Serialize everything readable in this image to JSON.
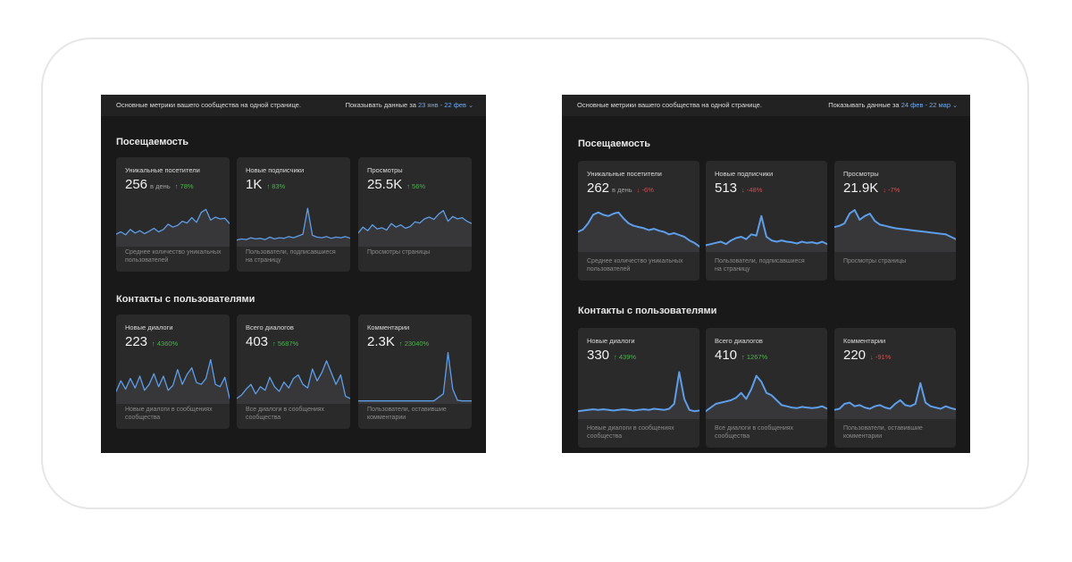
{
  "colors": {
    "panel_bg": "#19191a",
    "card_bg": "#2a2a2b",
    "accent_blue": "#71aaeb",
    "line_blue": "#5e9ee8",
    "up_green": "#4bb34b",
    "down_red": "#e64646"
  },
  "panels": [
    {
      "header_text": "Основные метрики вашего сообщества на одной странице.",
      "show_label": "Показывать данные за",
      "date_range": "23 янв - 22 фев",
      "sections": [
        {
          "title": "Посещаемость",
          "cards": [
            {
              "label": "Уникальные посетители",
              "value": "256",
              "unit": "в день",
              "delta": "78%",
              "direction": "up",
              "desc1": "Среднее количество уникальных",
              "desc2": "пользователей",
              "series": [
                18,
                22,
                17,
                26,
                20,
                24,
                19,
                23,
                28,
                22,
                26,
                35,
                30,
                33,
                40,
                37,
                46,
                38,
                55,
                60,
                42,
                47,
                44,
                45,
                36
              ]
            },
            {
              "label": "Новые подписчики",
              "value": "1K",
              "unit": "",
              "delta": "83%",
              "direction": "up",
              "desc1": "Пользователи, подписавшиеся",
              "desc2": "на страницу",
              "series": [
                8,
                10,
                9,
                12,
                10,
                11,
                9,
                13,
                10,
                12,
                11,
                14,
                12,
                15,
                18,
                62,
                16,
                13,
                12,
                14,
                11,
                13,
                12,
                14,
                11
              ]
            },
            {
              "label": "Просмотры",
              "value": "25.5K",
              "unit": "",
              "delta": "56%",
              "direction": "up",
              "desc1": "Просмотры страницы",
              "desc2": "",
              "series": [
                20,
                30,
                24,
                34,
                27,
                29,
                25,
                36,
                30,
                34,
                28,
                31,
                39,
                37,
                44,
                47,
                43,
                52,
                58,
                40,
                48,
                44,
                46,
                40,
                36
              ]
            }
          ]
        },
        {
          "title": "Контакты с пользователями",
          "cards": [
            {
              "label": "Новые диалоги",
              "value": "223",
              "unit": "",
              "delta": "4360%",
              "direction": "up",
              "desc1": "Новые диалоги в сообщениях",
              "desc2": "сообщества",
              "series": [
                18,
                36,
                22,
                40,
                24,
                44,
                20,
                30,
                48,
                26,
                44,
                20,
                28,
                55,
                30,
                47,
                58,
                33,
                30,
                40,
                72,
                30,
                26,
                42,
                6
              ]
            },
            {
              "label": "Всего диалогов",
              "value": "403",
              "unit": "",
              "delta": "5687%",
              "direction": "up",
              "desc1": "Все диалоги в сообщениях",
              "desc2": "сообщества",
              "series": [
                6,
                12,
                22,
                30,
                14,
                26,
                20,
                42,
                26,
                18,
                34,
                24,
                40,
                46,
                30,
                24,
                56,
                36,
                50,
                70,
                50,
                30,
                46,
                10,
                6
              ]
            },
            {
              "label": "Комментарии",
              "value": "2.3K",
              "unit": "",
              "delta": "23040%",
              "direction": "up",
              "desc1": "Пользователи, оставившие",
              "desc2": "комментарии",
              "series": [
                2,
                2,
                2,
                2,
                2,
                2,
                2,
                2,
                2,
                2,
                2,
                2,
                2,
                2,
                2,
                2,
                2,
                8,
                14,
                84,
                22,
                3,
                2,
                2,
                2
              ]
            }
          ]
        }
      ]
    },
    {
      "header_text": "Основные метрики вашего сообщества на одной странице.",
      "show_label": "Показывать данные за",
      "date_range": "24 фев - 22 мар",
      "sections": [
        {
          "title": "Посещаемость",
          "cards": [
            {
              "label": "Уникальные посетители",
              "value": "262",
              "unit": "в день",
              "delta": "-6%",
              "direction": "down",
              "desc1": "Среднее количество уникальных",
              "desc2": "пользователей",
              "series": [
                30,
                34,
                44,
                58,
                62,
                58,
                56,
                60,
                62,
                52,
                44,
                40,
                38,
                36,
                33,
                35,
                32,
                30,
                26,
                28,
                25,
                22,
                16,
                12,
                6
              ]
            },
            {
              "label": "Новые подписчики",
              "value": "513",
              "unit": "",
              "delta": "-48%",
              "direction": "down",
              "desc1": "Пользователи, подписавшиеся",
              "desc2": "на страницу",
              "series": [
                8,
                10,
                12,
                14,
                10,
                16,
                20,
                22,
                18,
                26,
                24,
                56,
                22,
                16,
                14,
                16,
                14,
                13,
                11,
                14,
                12,
                13,
                11,
                14,
                10
              ]
            },
            {
              "label": "Просмотры",
              "value": "21.9K",
              "unit": "",
              "delta": "-7%",
              "direction": "down",
              "desc1": "Просмотры страницы",
              "desc2": "",
              "series": [
                38,
                40,
                44,
                60,
                66,
                50,
                56,
                60,
                48,
                42,
                40,
                38,
                36,
                35,
                34,
                33,
                32,
                31,
                30,
                29,
                28,
                27,
                26,
                22,
                18
              ]
            }
          ]
        },
        {
          "title": "Контакты с пользователями",
          "cards": [
            {
              "label": "Новые диалоги",
              "value": "330",
              "unit": "",
              "delta": "439%",
              "direction": "up",
              "desc1": "Новые диалоги в сообщениях",
              "desc2": "сообщества",
              "series": [
                10,
                11,
                12,
                13,
                12,
                13,
                12,
                11,
                12,
                13,
                12,
                11,
                12,
                13,
                12,
                14,
                13,
                12,
                14,
                22,
                74,
                30,
                12,
                10,
                11
              ]
            },
            {
              "label": "Всего диалогов",
              "value": "410",
              "unit": "",
              "delta": "1267%",
              "direction": "up",
              "desc1": "Все диалоги в сообщениях",
              "desc2": "сообщества",
              "series": [
                10,
                16,
                22,
                24,
                26,
                28,
                32,
                40,
                30,
                46,
                68,
                58,
                40,
                36,
                28,
                20,
                18,
                16,
                15,
                17,
                16,
                15,
                16,
                18,
                14
              ]
            },
            {
              "label": "Комментарии",
              "value": "220",
              "unit": "",
              "delta": "-91%",
              "direction": "down",
              "desc1": "Пользователи, оставившие",
              "desc2": "комментарии",
              "series": [
                12,
                14,
                22,
                24,
                18,
                20,
                16,
                14,
                18,
                20,
                16,
                14,
                22,
                28,
                20,
                18,
                22,
                56,
                24,
                18,
                16,
                14,
                18,
                15,
                13
              ]
            }
          ]
        }
      ]
    }
  ]
}
